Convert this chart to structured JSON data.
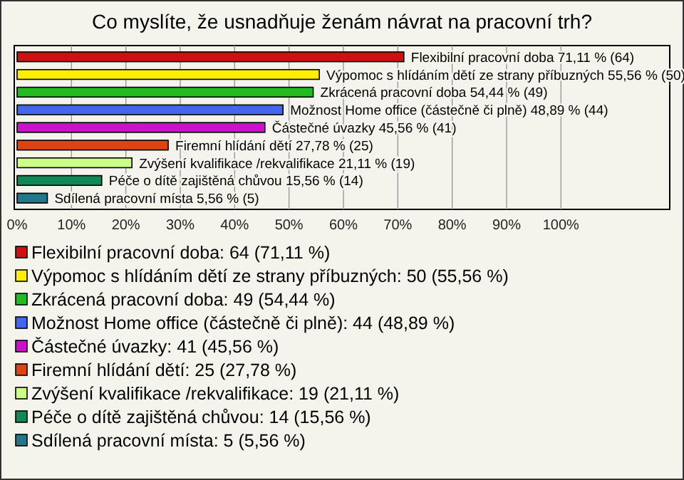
{
  "chart_data": {
    "type": "bar",
    "orientation": "horizontal",
    "title": "Co myslíte, že usnadňuje ženám návrat na pracovní trh?",
    "categories": [
      null,
      null,
      null,
      null,
      null,
      null,
      null,
      null,
      null
    ],
    "series": [
      {
        "name": "Flexibilní pracovní doba: 64 (71,11 %)",
        "color": "#cc1111",
        "values": [
          71.11,
          null,
          null,
          null,
          null,
          null,
          null,
          null,
          null
        ],
        "value_labels": [
          "Flexibilní pracovní doba 71,11 % (64)",
          null,
          null,
          null,
          null,
          null,
          null,
          null,
          null
        ]
      },
      {
        "name": "Výpomoc s hlídáním dětí ze strany příbuzných: 50 (55,56 %)",
        "color": "#ffee00",
        "values": [
          null,
          55.56,
          null,
          null,
          null,
          null,
          null,
          null,
          null
        ],
        "value_labels": [
          null,
          "Výpomoc s hlídáním dětí ze strany příbuzných 55,56 % (50)",
          null,
          null,
          null,
          null,
          null,
          null,
          null
        ]
      },
      {
        "name": "Zkrácená pracovní doba: 49 (54,44 %)",
        "color": "#22bb22",
        "values": [
          null,
          null,
          54.44,
          null,
          null,
          null,
          null,
          null,
          null
        ],
        "value_labels": [
          null,
          null,
          "Zkrácená pracovní doba 54,44 % (49)",
          null,
          null,
          null,
          null,
          null,
          null
        ]
      },
      {
        "name": "Možnost Home office (částečně či plně): 44 (48,89 %)",
        "color": "#4466ee",
        "values": [
          null,
          null,
          null,
          48.89,
          null,
          null,
          null,
          null,
          null
        ],
        "value_labels": [
          null,
          null,
          null,
          "Možnost Home office (částečně či plně) 48,89 % (44)",
          null,
          null,
          null,
          null,
          null
        ]
      },
      {
        "name": "Částečné úvazky: 41 (45,56 %)",
        "color": "#cc11cc",
        "values": [
          null,
          null,
          null,
          null,
          45.56,
          null,
          null,
          null,
          null
        ],
        "value_labels": [
          null,
          null,
          null,
          null,
          "Částečné úvazky 45,56 % (41)",
          null,
          null,
          null,
          null
        ]
      },
      {
        "name": "Firemní hlídání dětí: 25 (27,78 %)",
        "color": "#dd4411",
        "values": [
          null,
          null,
          null,
          null,
          null,
          27.78,
          null,
          null,
          null
        ],
        "value_labels": [
          null,
          null,
          null,
          null,
          null,
          "Firemní hlídání dětí 27,78 % (25)",
          null,
          null,
          null
        ]
      },
      {
        "name": "Zvýšení kvalifikace /rekvalifikace: 19 (21,11 %)",
        "color": "#ccff88",
        "values": [
          null,
          null,
          null,
          null,
          null,
          null,
          21.11,
          null,
          null
        ],
        "value_labels": [
          null,
          null,
          null,
          null,
          null,
          null,
          "Zvýšení kvalifikace /rekvalifikace 21,11 % (19)",
          null,
          null
        ]
      },
      {
        "name": "Péče o dítě zajištěná chůvou: 14 (15,56 %)",
        "color": "#118855",
        "values": [
          null,
          null,
          null,
          null,
          null,
          null,
          null,
          15.56,
          null
        ],
        "value_labels": [
          null,
          null,
          null,
          null,
          null,
          null,
          null,
          "Péče o dítě zajištěná chůvou 15,56 % (14)",
          null
        ]
      },
      {
        "name": "Sdílená pracovní místa: 5 (5,56 %)",
        "color": "#227788",
        "values": [
          null,
          null,
          null,
          null,
          null,
          null,
          null,
          null,
          5.56
        ],
        "value_labels": [
          null,
          null,
          null,
          null,
          null,
          null,
          null,
          null,
          "Sdílená pracovní místa 5,56 % (5)"
        ]
      }
    ],
    "xlim": [
      0,
      120
    ],
    "xticks": [
      {
        "value": 0,
        "label": "0%"
      },
      {
        "value": 10,
        "label": "10%"
      },
      {
        "value": 20,
        "label": "20%"
      },
      {
        "value": 30,
        "label": "30%"
      },
      {
        "value": 40,
        "label": "40%"
      },
      {
        "value": 50,
        "label": "50%"
      },
      {
        "value": 60,
        "label": "60%"
      },
      {
        "value": 70,
        "label": "70%"
      },
      {
        "value": 80,
        "label": "80%"
      },
      {
        "value": 90,
        "label": "90%"
      },
      {
        "value": 100,
        "label": "100%"
      }
    ],
    "grid": "x",
    "legend": "bottom"
  }
}
